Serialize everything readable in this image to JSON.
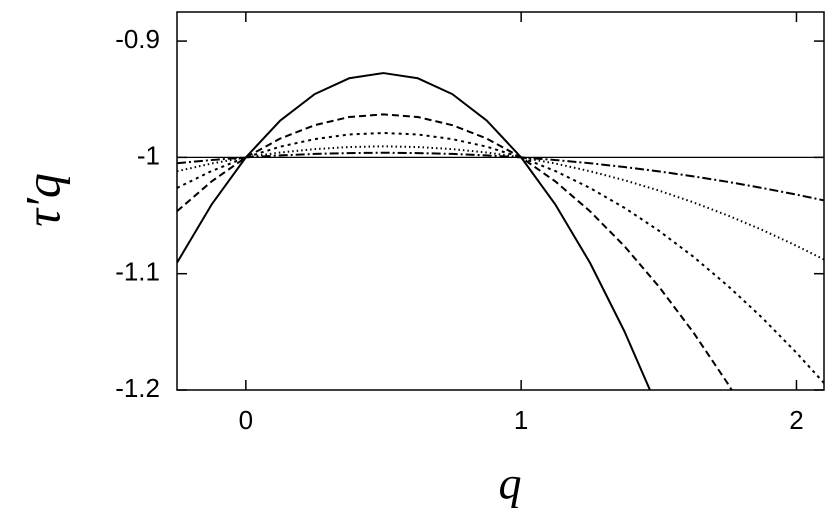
{
  "chart_data": {
    "type": "line",
    "xlabel": "q",
    "ylabel": "τ′q",
    "x": [
      -0.25,
      -0.125,
      0,
      0.125,
      0.25,
      0.375,
      0.5,
      0.625,
      0.75,
      0.875,
      1,
      1.125,
      1.25,
      1.375,
      1.5,
      1.625,
      1.75,
      1.875,
      2,
      2.1
    ],
    "series": [
      {
        "color": "#000000",
        "dash": "none",
        "width": 1.2,
        "values": [
          -1,
          -1,
          -1,
          -1,
          -1,
          -1,
          -1,
          -1,
          -1,
          -1,
          -1,
          -1,
          -1,
          -1,
          -1,
          -1,
          -1,
          -1,
          -1,
          -1
        ]
      },
      {
        "color": "#000000",
        "dash": "none",
        "width": 2,
        "values": [
          -1.0906,
          -1.0408,
          -1,
          -0.9683,
          -0.9456,
          -0.932,
          -0.9275,
          -0.932,
          -0.9456,
          -0.9683,
          -1,
          -1.0408,
          -1.0906,
          -1.1495,
          -1.2175,
          null,
          null,
          null,
          null,
          null
        ]
      },
      {
        "color": "#000000",
        "dash": "7 4",
        "width": 2,
        "values": [
          -1.0463,
          -1.0208,
          -1,
          -0.9838,
          -0.9723,
          -0.9653,
          -0.963,
          -0.9653,
          -0.9723,
          -0.9838,
          -1,
          -1.0208,
          -1.0463,
          -1.0763,
          -1.111,
          -1.1503,
          -1.1943,
          -1.2428,
          null,
          null
        ]
      },
      {
        "color": "#000000",
        "dash": "3 4",
        "width": 2,
        "values": [
          -1.0263,
          -1.0118,
          -1,
          -0.9908,
          -0.9843,
          -0.9803,
          -0.979,
          -0.9803,
          -0.9843,
          -0.9908,
          -1,
          -1.0118,
          -1.0263,
          -1.0433,
          -1.063,
          -1.0853,
          -1.1103,
          -1.1378,
          -1.168,
          -1.194
        ]
      },
      {
        "color": "#000000",
        "dash": "1.5 3",
        "width": 2,
        "values": [
          -1.0119,
          -1.0053,
          -1,
          -0.9958,
          -0.9929,
          -0.9911,
          -0.9905,
          -0.9911,
          -0.9929,
          -0.9958,
          -1,
          -1.0053,
          -1.0119,
          -1.0196,
          -1.0285,
          -1.0386,
          -1.0499,
          -1.0623,
          -1.076,
          -1.0878
        ]
      },
      {
        "color": "#000000",
        "dash": "9 3 2 3",
        "width": 2,
        "values": [
          -1.005,
          -1.0023,
          -1,
          -0.9983,
          -0.997,
          -0.9963,
          -0.996,
          -0.9963,
          -0.997,
          -0.9983,
          -1,
          -1.0023,
          -1.005,
          -1.0083,
          -1.012,
          -1.0163,
          -1.021,
          -1.0263,
          -1.032,
          -1.037
        ]
      }
    ],
    "xlim": [
      -0.25,
      2.1
    ],
    "ylim": [
      -1.2,
      -0.875
    ],
    "xticks": [
      0,
      1,
      2
    ],
    "yticks": [
      -0.9,
      -1,
      -1.1,
      -1.2
    ]
  }
}
